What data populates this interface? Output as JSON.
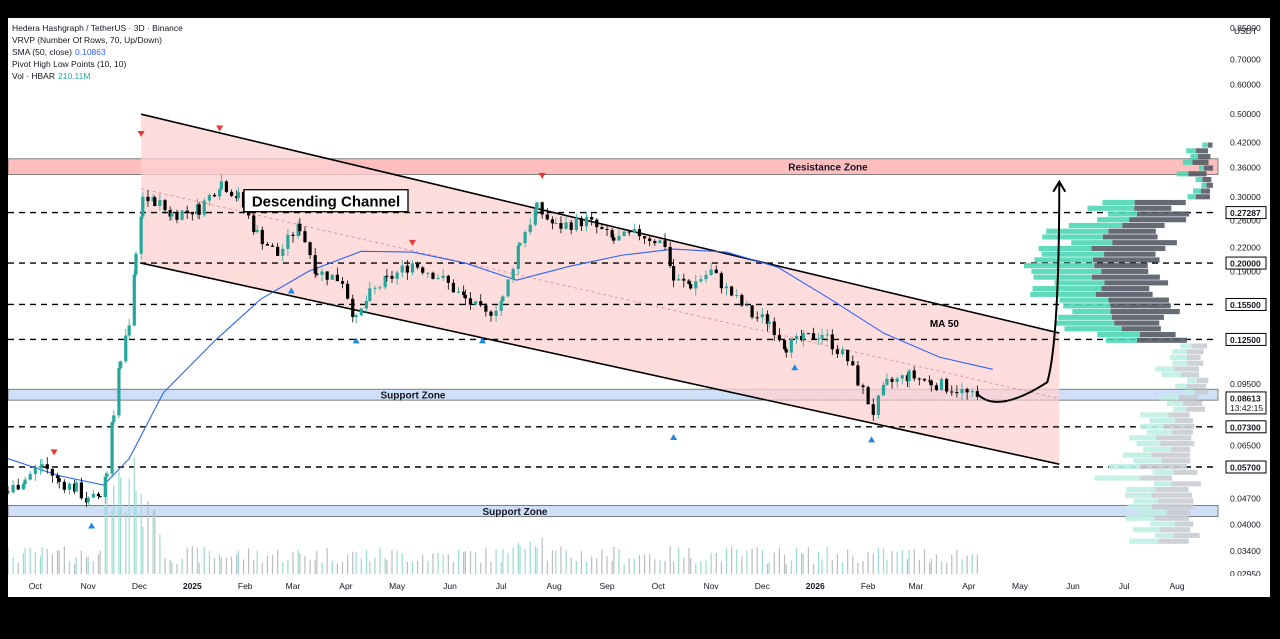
{
  "legend": {
    "title": "Hedera Hashgraph / TetherUS · 3D · Binance",
    "vrvp": "VRVP (Number Of Rows, 70, Up/Down)",
    "sma_label": "SMA (50, close)",
    "sma_value": "0.10863",
    "pivot": "Pivot High Low Points (10, 10)",
    "vol_label": "Vol · HBAR",
    "vol_value": "210.11M"
  },
  "chart_data": {
    "type": "candlestick",
    "currency": "USDT",
    "scale": "log",
    "ylim": [
      0.0295,
      0.85
    ],
    "y_ticks": [
      "0.85000",
      "0.70000",
      "0.60000",
      "0.50000",
      "0.42000",
      "0.36000",
      "0.30000",
      "0.26000",
      "0.22000",
      "0.19000",
      "0.15500",
      "0.12500",
      "0.09500",
      "0.07300",
      "0.06500",
      "0.05700",
      "0.04700",
      "0.04000",
      "0.03400",
      "0.02950"
    ],
    "highlighted_levels": [
      {
        "label": "0.27287",
        "value": 0.27287
      },
      {
        "label": "0.20000",
        "value": 0.2
      },
      {
        "label": "0.15500",
        "value": 0.155
      },
      {
        "label": "0.12500",
        "value": 0.125
      },
      {
        "label": "0.07300",
        "value": 0.073
      },
      {
        "label": "0.05700",
        "value": 0.057
      }
    ],
    "current_price": {
      "label": "0.08613",
      "value": 0.08613,
      "countdown": "13:42:15"
    },
    "x_ticks": [
      {
        "label": "Oct",
        "date": "2024-10-01"
      },
      {
        "label": "Nov",
        "date": "2024-11-01"
      },
      {
        "label": "Dec",
        "date": "2024-12-01"
      },
      {
        "label": "2025",
        "date": "2025-01-01"
      },
      {
        "label": "Feb",
        "date": "2025-02-01"
      },
      {
        "label": "Mar",
        "date": "2025-03-01"
      },
      {
        "label": "Apr",
        "date": "2025-04-01"
      },
      {
        "label": "May",
        "date": "2025-05-01"
      },
      {
        "label": "Jun",
        "date": "2025-06-01"
      },
      {
        "label": "Jul",
        "date": "2025-07-01"
      },
      {
        "label": "Aug",
        "date": "2025-08-01"
      },
      {
        "label": "Sep",
        "date": "2025-09-01"
      },
      {
        "label": "Oct",
        "date": "2025-10-01"
      },
      {
        "label": "Nov",
        "date": "2025-11-01"
      },
      {
        "label": "Dec",
        "date": "2025-12-01"
      },
      {
        "label": "2026",
        "date": "2026-01-01"
      },
      {
        "label": "Feb",
        "date": "2026-02-01"
      },
      {
        "label": "Mar",
        "date": "2026-03-01"
      },
      {
        "label": "Apr",
        "date": "2026-04-01"
      },
      {
        "label": "May",
        "date": "2026-05-01"
      },
      {
        "label": "Jun",
        "date": "2026-06-01"
      },
      {
        "label": "Jul",
        "date": "2026-07-01"
      },
      {
        "label": "Aug",
        "date": "2026-08-01"
      }
    ],
    "price_path": [
      [
        "2024-09-15",
        0.049
      ],
      [
        "2024-09-25",
        0.053
      ],
      [
        "2024-10-05",
        0.058
      ],
      [
        "2024-10-15",
        0.052
      ],
      [
        "2024-10-25",
        0.05
      ],
      [
        "2024-11-01",
        0.046
      ],
      [
        "2024-11-08",
        0.048
      ],
      [
        "2024-11-12",
        0.056
      ],
      [
        "2024-11-16",
        0.08
      ],
      [
        "2024-11-20",
        0.11
      ],
      [
        "2024-11-25",
        0.14
      ],
      [
        "2024-11-29",
        0.21
      ],
      [
        "2024-12-03",
        0.3
      ],
      [
        "2024-12-10",
        0.29
      ],
      [
        "2024-12-20",
        0.27
      ],
      [
        "2025-01-05",
        0.28
      ],
      [
        "2025-01-18",
        0.33
      ],
      [
        "2025-01-28",
        0.3
      ],
      [
        "2025-02-08",
        0.24
      ],
      [
        "2025-02-20",
        0.21
      ],
      [
        "2025-03-01",
        0.24
      ],
      [
        "2025-03-05",
        0.25
      ],
      [
        "2025-03-15",
        0.19
      ],
      [
        "2025-03-30",
        0.18
      ],
      [
        "2025-04-07",
        0.14
      ],
      [
        "2025-04-15",
        0.165
      ],
      [
        "2025-04-25",
        0.18
      ],
      [
        "2025-05-10",
        0.2
      ],
      [
        "2025-05-25",
        0.185
      ],
      [
        "2025-06-10",
        0.16
      ],
      [
        "2025-06-22",
        0.145
      ],
      [
        "2025-07-02",
        0.16
      ],
      [
        "2025-07-12",
        0.23
      ],
      [
        "2025-07-22",
        0.28
      ],
      [
        "2025-08-02",
        0.25
      ],
      [
        "2025-08-20",
        0.26
      ],
      [
        "2025-09-05",
        0.23
      ],
      [
        "2025-09-20",
        0.24
      ],
      [
        "2025-10-05",
        0.225
      ],
      [
        "2025-10-10",
        0.18
      ],
      [
        "2025-10-20",
        0.175
      ],
      [
        "2025-11-01",
        0.19
      ],
      [
        "2025-11-10",
        0.17
      ],
      [
        "2025-11-25",
        0.145
      ],
      [
        "2025-12-05",
        0.14
      ],
      [
        "2025-12-15",
        0.12
      ],
      [
        "2025-12-25",
        0.125
      ],
      [
        "2026-01-05",
        0.13
      ],
      [
        "2026-01-20",
        0.11
      ],
      [
        "2026-02-04",
        0.08
      ],
      [
        "2026-02-12",
        0.095
      ],
      [
        "2026-02-25",
        0.1
      ],
      [
        "2026-03-10",
        0.096
      ],
      [
        "2026-03-25",
        0.092
      ],
      [
        "2026-04-07",
        0.086
      ]
    ],
    "sma50": [
      [
        "2024-09-15",
        0.06
      ],
      [
        "2024-10-15",
        0.054
      ],
      [
        "2024-11-10",
        0.051
      ],
      [
        "2024-11-25",
        0.06
      ],
      [
        "2024-12-15",
        0.09
      ],
      [
        "2025-01-15",
        0.125
      ],
      [
        "2025-02-10",
        0.16
      ],
      [
        "2025-03-10",
        0.19
      ],
      [
        "2025-04-10",
        0.215
      ],
      [
        "2025-05-10",
        0.214
      ],
      [
        "2025-06-10",
        0.2
      ],
      [
        "2025-07-10",
        0.18
      ],
      [
        "2025-08-10",
        0.196
      ],
      [
        "2025-09-10",
        0.21
      ],
      [
        "2025-10-10",
        0.218
      ],
      [
        "2025-11-10",
        0.214
      ],
      [
        "2025-12-10",
        0.195
      ],
      [
        "2026-01-10",
        0.16
      ],
      [
        "2026-02-10",
        0.13
      ],
      [
        "2026-03-15",
        0.112
      ],
      [
        "2026-04-15",
        0.104
      ]
    ],
    "channel": {
      "upper": [
        [
          "2024-12-02",
          0.5
        ],
        [
          "2026-05-24",
          0.13
        ]
      ],
      "lower": [
        [
          "2024-12-02",
          0.2
        ],
        [
          "2026-05-24",
          0.058
        ]
      ],
      "fill": "#ffd2d2"
    },
    "zones": [
      {
        "label": "Resistance Zone",
        "low": 0.345,
        "high": 0.38,
        "color": "#ffb3b3"
      },
      {
        "label": "Support Zone",
        "low": 0.086,
        "high": 0.092,
        "color": "#c8d9f7"
      },
      {
        "label": "Support Zone",
        "low": 0.042,
        "high": 0.045,
        "color": "#c8d9f7"
      }
    ],
    "pivots_high": [
      [
        "2024-10-12",
        0.062
      ],
      [
        "2024-12-02",
        0.44
      ],
      [
        "2025-01-17",
        0.455
      ],
      [
        "2025-05-10",
        0.225
      ],
      [
        "2025-07-25",
        0.34
      ]
    ],
    "pivots_low": [
      [
        "2024-11-03",
        0.04
      ],
      [
        "2025-02-28",
        0.17
      ],
      [
        "2025-04-07",
        0.125
      ],
      [
        "2025-06-20",
        0.125
      ],
      [
        "2025-10-10",
        0.069
      ],
      [
        "2025-12-20",
        0.106
      ],
      [
        "2026-02-03",
        0.068
      ]
    ],
    "projection": {
      "from": [
        "2026-04-12",
        0.086
      ],
      "to": [
        "2026-05-24",
        0.33
      ]
    },
    "annotations": [
      {
        "text": "Descending Channel",
        "date": "2025-03-01",
        "value": 0.29
      },
      {
        "text": "MA 50",
        "date": "2026-03-15",
        "value": 0.135
      }
    ],
    "colors": {
      "up": "#26a69a",
      "down": "#000000",
      "sma": "#2962ff",
      "pivot_high": "#e53935",
      "pivot_low": "#1e88e5",
      "vp_up": "#4fd6b5",
      "vp_down": "#555a66"
    }
  }
}
